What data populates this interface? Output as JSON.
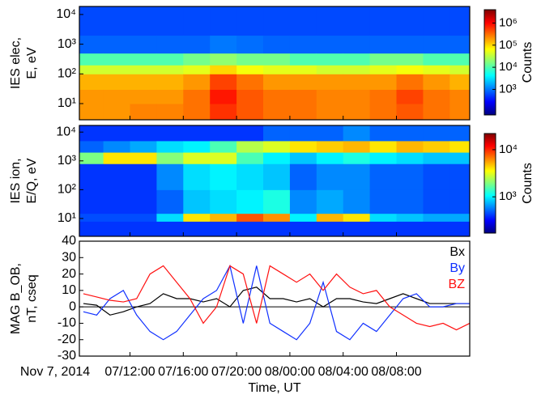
{
  "chart_data": [
    {
      "type": "heatmap",
      "ylabel": [
        "IES elec,",
        "E, eV"
      ],
      "log_y": true,
      "xlim": [
        8.2,
        37.5
      ],
      "ylim": [
        2.85,
        18600
      ],
      "yticks": [
        {
          "value": 10,
          "label": "10¹"
        },
        {
          "value": 100,
          "label": "10²"
        },
        {
          "value": 1000,
          "label": "10³"
        },
        {
          "value": 10000,
          "label": "10⁴"
        }
      ],
      "x_edges": [
        8.2,
        10,
        12,
        14,
        16,
        18,
        20,
        22,
        24,
        26,
        28,
        30,
        32,
        34,
        36,
        37.5
      ],
      "y_edges": [
        2.85,
        10,
        30,
        100,
        200,
        500,
        2000,
        18600
      ],
      "values": [
        [
          200000.0,
          200000.0,
          150000.0,
          40000.0,
          10000.0,
          800,
          600
        ],
        [
          200000.0,
          200000.0,
          150000.0,
          40000.0,
          10000.0,
          800,
          600
        ],
        [
          250000.0,
          200000.0,
          150000.0,
          40000.0,
          10000.0,
          800,
          600
        ],
        [
          250000.0,
          200000.0,
          150000.0,
          40000.0,
          10000.0,
          800,
          600
        ],
        [
          300000.0,
          300000.0,
          200000.0,
          50000.0,
          15000.0,
          800,
          600
        ],
        [
          600000.0,
          800000.0,
          500000.0,
          100000.0,
          20000.0,
          1000,
          600
        ],
        [
          400000.0,
          400000.0,
          300000.0,
          60000.0,
          15000.0,
          900,
          600
        ],
        [
          300000.0,
          300000.0,
          200000.0,
          50000.0,
          15000.0,
          800,
          600
        ],
        [
          300000.0,
          300000.0,
          200000.0,
          50000.0,
          10000.0,
          800,
          600
        ],
        [
          250000.0,
          250000.0,
          200000.0,
          40000.0,
          10000.0,
          800,
          600
        ],
        [
          250000.0,
          250000.0,
          200000.0,
          40000.0,
          10000.0,
          800,
          600
        ],
        [
          300000.0,
          300000.0,
          200000.0,
          50000.0,
          15000.0,
          800,
          600
        ],
        [
          400000.0,
          500000.0,
          300000.0,
          60000.0,
          15000.0,
          800,
          600
        ],
        [
          300000.0,
          300000.0,
          200000.0,
          50000.0,
          10000.0,
          800,
          600
        ],
        [
          250000.0,
          250000.0,
          150000.0,
          40000.0,
          10000.0,
          800,
          600
        ]
      ],
      "colorbar": {
        "label": "Counts",
        "lim": [
          70,
          4000000
        ],
        "ticks": [
          {
            "value": 1000,
            "label": "10³"
          },
          {
            "value": 10000,
            "label": "10⁴"
          },
          {
            "value": 100000,
            "label": "10⁵"
          },
          {
            "value": 1000000,
            "label": "10⁶"
          }
        ]
      }
    },
    {
      "type": "heatmap",
      "ylabel": [
        "IES ion,",
        "E/Q, eV"
      ],
      "log_y": true,
      "xlim": [
        8.2,
        37.5
      ],
      "ylim": [
        2.4,
        17000
      ],
      "yticks": [
        {
          "value": 10,
          "label": "10¹"
        },
        {
          "value": 100,
          "label": "10²"
        },
        {
          "value": 1000,
          "label": "10³"
        },
        {
          "value": 10000,
          "label": "10⁴"
        }
      ],
      "x_edges": [
        8.2,
        10,
        12,
        14,
        16,
        18,
        20,
        22,
        24,
        26,
        28,
        30,
        32,
        34,
        36,
        37.5
      ],
      "y_edges": [
        2.4,
        8,
        15,
        100,
        800,
        2000,
        5000,
        17000
      ],
      "values": [
        [
          400,
          450,
          400,
          400,
          1900,
          500,
          400
        ],
        [
          400,
          450,
          400,
          400,
          4000,
          600,
          400
        ],
        [
          400,
          450,
          400,
          400,
          4000,
          700,
          400
        ],
        [
          400,
          900,
          500,
          600,
          2000,
          900,
          400
        ],
        [
          400,
          4000,
          800,
          900,
          3000,
          1000,
          400
        ],
        [
          400,
          5000,
          900,
          1000,
          3000,
          1500,
          400
        ],
        [
          400,
          8000,
          1000,
          900,
          1500,
          2500,
          400
        ],
        [
          400,
          6000,
          1200,
          800,
          1000,
          3000,
          500
        ],
        [
          400,
          1000,
          600,
          500,
          800,
          4000,
          500
        ],
        [
          400,
          5000,
          700,
          600,
          1000,
          4500,
          500
        ],
        [
          400,
          4000,
          600,
          600,
          1200,
          5000,
          600
        ],
        [
          400,
          900,
          500,
          500,
          1000,
          4000,
          500
        ],
        [
          400,
          800,
          500,
          500,
          900,
          5000,
          500
        ],
        [
          400,
          700,
          450,
          450,
          800,
          4500,
          500
        ],
        [
          400,
          700,
          450,
          450,
          800,
          4000,
          500
        ]
      ],
      "colorbar": {
        "label": "Counts",
        "lim": [
          170,
          22000
        ],
        "ticks": [
          {
            "value": 1000,
            "label": "10³"
          },
          {
            "value": 10000,
            "label": "10⁴"
          }
        ]
      }
    },
    {
      "type": "line",
      "ylabel": [
        "MAG B_OB,",
        "nT, cseq"
      ],
      "xlabel": "Time, UT",
      "annotation": "Nov 7, 2014",
      "xlim": [
        8.2,
        37.5
      ],
      "ylim": [
        -30,
        40
      ],
      "yticks": [
        -30,
        -20,
        -10,
        0,
        10,
        20,
        30,
        40
      ],
      "xticks": [
        {
          "value": 12,
          "label": "07/12:00"
        },
        {
          "value": 16,
          "label": "07/16:00"
        },
        {
          "value": 20,
          "label": "07/20:00"
        },
        {
          "value": 24,
          "label": "08/00:00"
        },
        {
          "value": 28,
          "label": "08/04:00"
        },
        {
          "value": 32,
          "label": "08/08:00"
        }
      ],
      "reference_line": 0,
      "x": [
        8.5,
        9.5,
        10.5,
        11.5,
        12.5,
        13.5,
        14.5,
        15.5,
        16.5,
        17.5,
        18.5,
        19.5,
        20.5,
        21.5,
        22.5,
        23.5,
        24.5,
        25.5,
        26.5,
        27.5,
        28.5,
        29.5,
        30.5,
        31.5,
        32.5,
        33.5,
        34.5,
        35.5,
        36.5,
        37.5
      ],
      "series": [
        {
          "name": "Bx",
          "color": "#000000",
          "values": [
            2,
            1,
            -5,
            -3,
            0,
            2,
            8,
            5,
            5,
            3,
            5,
            0,
            10,
            12,
            5,
            5,
            3,
            5,
            0,
            5,
            5,
            3,
            2,
            5,
            8,
            5,
            2,
            2,
            2,
            2
          ]
        },
        {
          "name": "By",
          "color": "#1030ff",
          "values": [
            -3,
            -5,
            5,
            10,
            -5,
            -15,
            -20,
            -15,
            -5,
            5,
            10,
            25,
            -10,
            25,
            -10,
            -15,
            -20,
            -10,
            15,
            -15,
            -20,
            -10,
            -15,
            -5,
            5,
            8,
            0,
            0,
            2,
            2
          ]
        },
        {
          "name": "BZ",
          "color": "#ff1010",
          "values": [
            8,
            6,
            4,
            3,
            5,
            20,
            25,
            15,
            5,
            -10,
            0,
            25,
            20,
            -10,
            25,
            20,
            15,
            20,
            10,
            20,
            12,
            8,
            10,
            0,
            -5,
            -10,
            -12,
            -10,
            -14,
            -10
          ]
        }
      ]
    }
  ]
}
